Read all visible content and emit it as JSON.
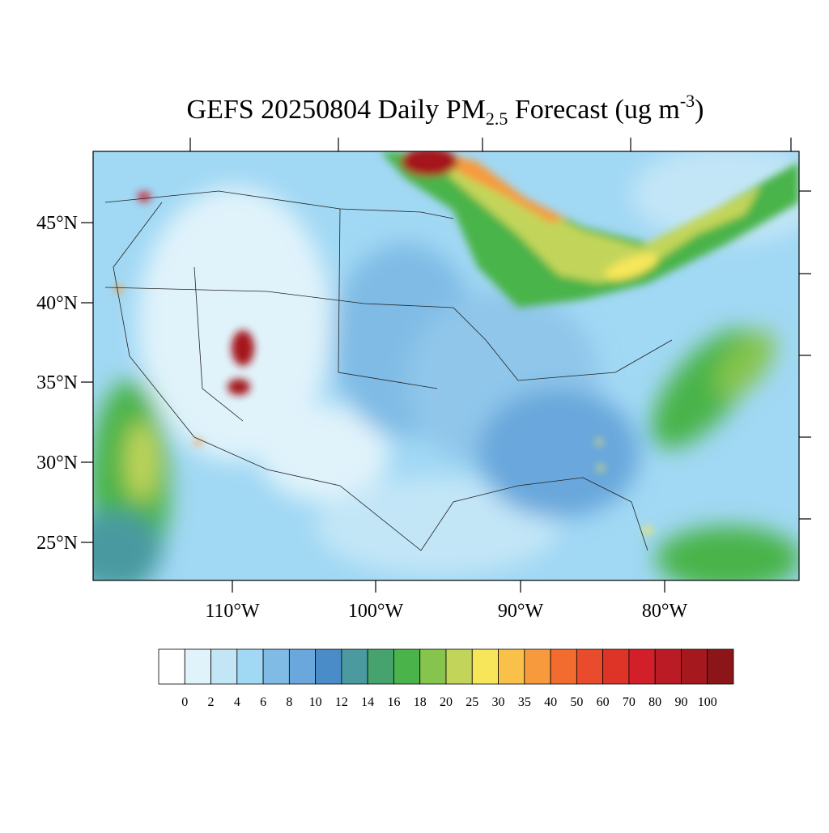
{
  "header": {
    "title_main": "GEFS 20250804 Daily PM",
    "title_sub": "2.5",
    "title_rest": " Forecast (ug m",
    "title_sup": "-3",
    "title_end": ")"
  },
  "map": {
    "lat_labels": [
      "45°N",
      "40°N",
      "35°N",
      "30°N",
      "25°N"
    ],
    "lon_labels": [
      "110°W",
      "100°W",
      "90°W",
      "80°W"
    ]
  },
  "colorbar": {
    "levels": [
      0,
      2,
      4,
      6,
      8,
      10,
      12,
      14,
      16,
      18,
      20,
      25,
      30,
      35,
      40,
      50,
      60,
      70,
      80,
      90,
      100
    ],
    "colors": [
      "#ffffff",
      "#e0f3fb",
      "#c3e6f7",
      "#a1d8f4",
      "#7fbbe5",
      "#69a7dc",
      "#4a8cc8",
      "#4a9aa0",
      "#47a36d",
      "#4ab44a",
      "#85c44d",
      "#c2d55a",
      "#f7e65a",
      "#f9c04a",
      "#f79a3e",
      "#f26b2f",
      "#e84c2d",
      "#de3427",
      "#d21f2a",
      "#bb1b24",
      "#a5181e",
      "#8c1519"
    ]
  }
}
